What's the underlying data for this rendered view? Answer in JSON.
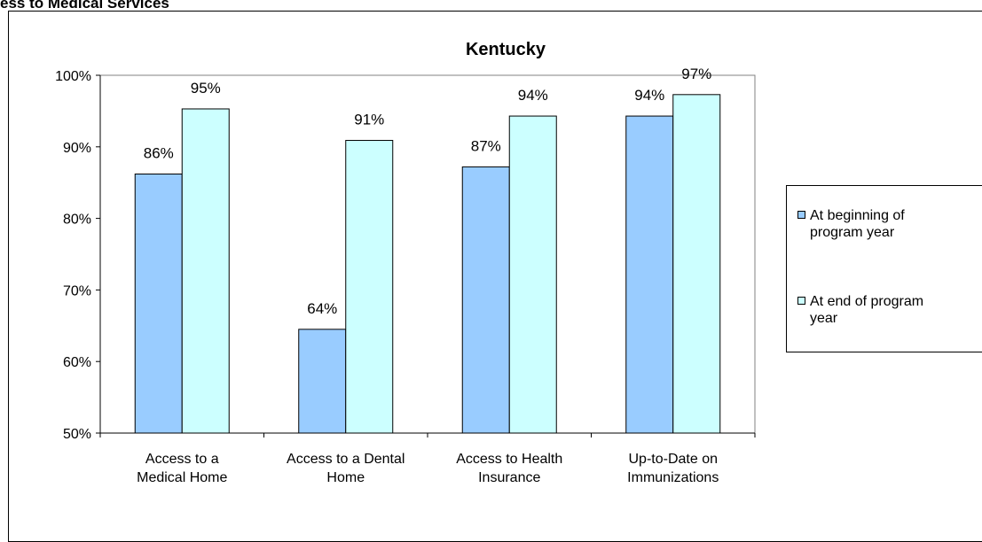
{
  "page_heading": "ess to Medical Services",
  "chart_data": {
    "type": "bar",
    "title": "Kentucky",
    "categories": [
      [
        "Access to a",
        "Medical Home"
      ],
      [
        "Access to a Dental",
        "Home"
      ],
      [
        "Access to Health",
        "Insurance"
      ],
      [
        "Up-to-Date on",
        "Immunizations"
      ]
    ],
    "series": [
      {
        "name": "At beginning of program year",
        "color": "#99ccff",
        "values": [
          86,
          64,
          87,
          94
        ],
        "value_labels": [
          "86%",
          "64%",
          "87%",
          "94%"
        ],
        "actual_values": [
          86.2,
          64.5,
          87.2,
          94.3
        ]
      },
      {
        "name": "At end of program year",
        "color": "#ccffff",
        "values": [
          95,
          91,
          94,
          97
        ],
        "value_labels": [
          "95%",
          "91%",
          "94%",
          "97%"
        ],
        "actual_values": [
          95.3,
          90.9,
          94.3,
          97.3
        ]
      }
    ],
    "ylim": [
      50,
      100
    ],
    "yticks": [
      "50%",
      "60%",
      "70%",
      "80%",
      "90%",
      "100%"
    ],
    "plot_background": "#ffffff",
    "grid": false,
    "legend_position": "right"
  },
  "legend": {
    "items": [
      {
        "line1": "At beginning of",
        "line2": "program year"
      },
      {
        "line1": "At end of program",
        "line2": "year"
      }
    ]
  }
}
